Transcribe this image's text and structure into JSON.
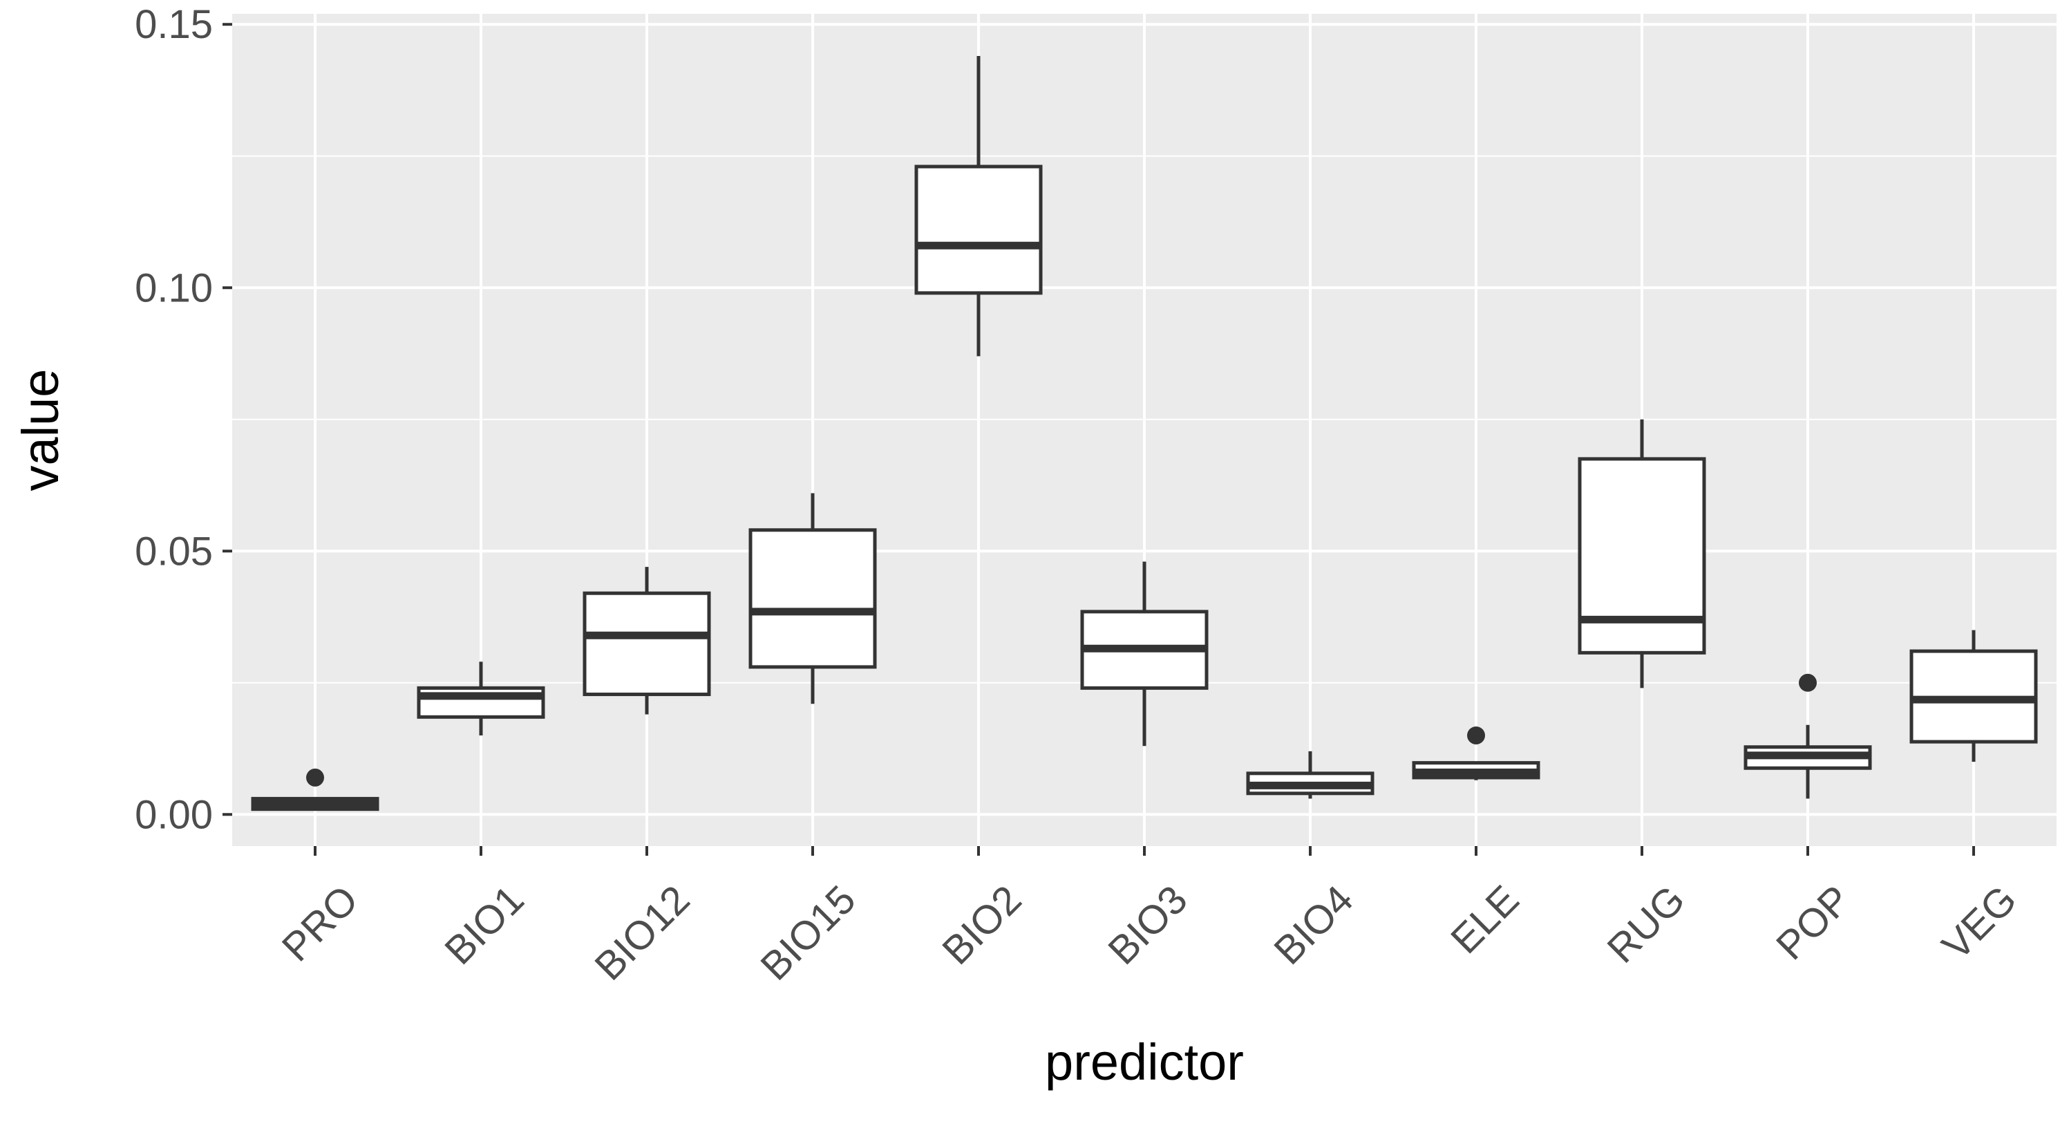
{
  "chart_data": {
    "type": "boxplot",
    "xlabel": "predictor",
    "ylabel": "value",
    "ylim": [
      -0.006,
      0.152
    ],
    "yticks": [
      0.0,
      0.05,
      0.1,
      0.15
    ],
    "ytick_labels": [
      "0.00",
      "0.05",
      "0.10",
      "0.15"
    ],
    "grid": true,
    "categories": [
      "PRO",
      "BIO1",
      "BIO12",
      "BIO15",
      "BIO2",
      "BIO3",
      "BIO4",
      "ELE",
      "RUG",
      "POP",
      "VEG"
    ],
    "boxes": [
      {
        "category": "PRO",
        "whisker_low": 0.001,
        "q1": 0.001,
        "median": 0.002,
        "q3": 0.003,
        "whisker_high": 0.003,
        "outliers": [
          0.007
        ]
      },
      {
        "category": "BIO1",
        "whisker_low": 0.015,
        "q1": 0.0185,
        "median": 0.0225,
        "q3": 0.024,
        "whisker_high": 0.029,
        "outliers": []
      },
      {
        "category": "BIO12",
        "whisker_low": 0.019,
        "q1": 0.0228,
        "median": 0.034,
        "q3": 0.042,
        "whisker_high": 0.047,
        "outliers": []
      },
      {
        "category": "BIO15",
        "whisker_low": 0.021,
        "q1": 0.028,
        "median": 0.0385,
        "q3": 0.054,
        "whisker_high": 0.061,
        "outliers": []
      },
      {
        "category": "BIO2",
        "whisker_low": 0.087,
        "q1": 0.099,
        "median": 0.108,
        "q3": 0.123,
        "whisker_high": 0.144,
        "outliers": []
      },
      {
        "category": "BIO3",
        "whisker_low": 0.013,
        "q1": 0.024,
        "median": 0.0315,
        "q3": 0.0385,
        "whisker_high": 0.048,
        "outliers": []
      },
      {
        "category": "BIO4",
        "whisker_low": 0.003,
        "q1": 0.004,
        "median": 0.0055,
        "q3": 0.0078,
        "whisker_high": 0.012,
        "outliers": []
      },
      {
        "category": "ELE",
        "whisker_low": 0.0065,
        "q1": 0.007,
        "median": 0.008,
        "q3": 0.0098,
        "whisker_high": 0.0098,
        "outliers": [
          0.015
        ]
      },
      {
        "category": "RUG",
        "whisker_low": 0.024,
        "q1": 0.0307,
        "median": 0.037,
        "q3": 0.0675,
        "whisker_high": 0.075,
        "outliers": []
      },
      {
        "category": "POP",
        "whisker_low": 0.003,
        "q1": 0.0088,
        "median": 0.0112,
        "q3": 0.0128,
        "whisker_high": 0.017,
        "outliers": [
          0.025
        ]
      },
      {
        "category": "VEG",
        "whisker_low": 0.01,
        "q1": 0.0138,
        "median": 0.0218,
        "q3": 0.031,
        "whisker_high": 0.035,
        "outliers": []
      }
    ],
    "colors": {
      "panel_background": "#ebebeb",
      "grid": "#ffffff",
      "box_fill": "#ffffff",
      "box_stroke": "#333333",
      "tick_text": "#4d4d4d",
      "title_text": "#000000"
    }
  }
}
